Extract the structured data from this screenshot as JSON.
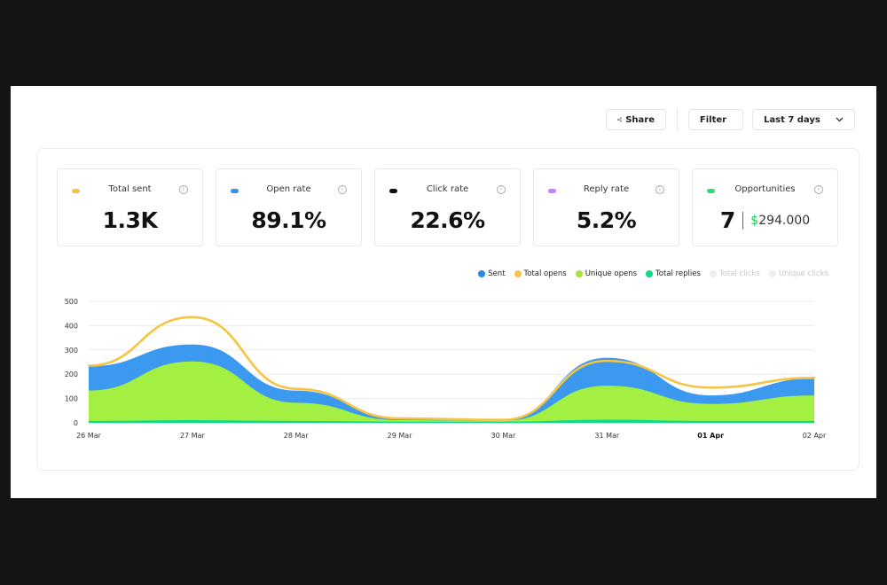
{
  "toolbar": {
    "share_label": "Share",
    "filter_label": "Filter",
    "date_label": "Last 7 days"
  },
  "kpis": [
    {
      "label": "Total sent",
      "value": "1.3K",
      "color": "#f6c445"
    },
    {
      "label": "Open rate",
      "value": "89.1%",
      "color": "#3b8fe8"
    },
    {
      "label": "Click rate",
      "value": "22.6%",
      "color": "#111111"
    },
    {
      "label": "Reply rate",
      "value": "5.2%",
      "color": "#c084fc"
    },
    {
      "label": "Opportunities",
      "value": "7",
      "currency_symbol": "$",
      "amount": "294.000",
      "color": "#22e07a"
    }
  ],
  "info_glyph": "i",
  "legend": [
    {
      "label": "Sent",
      "color": "#2a8ae8",
      "active": true
    },
    {
      "label": "Total opens",
      "color": "#f6c445",
      "active": true
    },
    {
      "label": "Unique opens",
      "color": "#a3e635",
      "active": true
    },
    {
      "label": "Total replies",
      "color": "#10d98a",
      "active": true
    },
    {
      "label": "Total clicks",
      "color": "#eeeeee",
      "active": false
    },
    {
      "label": "Unique clicks",
      "color": "#eeeeee",
      "active": false
    }
  ],
  "chart_data": {
    "type": "area",
    "title": "",
    "xlabel": "",
    "ylabel": "",
    "categories": [
      "26 Mar",
      "27 Mar",
      "28 Mar",
      "29 Mar",
      "30 Mar",
      "31 Mar",
      "01 Apr",
      "02 Apr"
    ],
    "highlight_category": "01 Apr",
    "yticks": [
      0,
      100,
      200,
      300,
      400,
      500
    ],
    "ylim": [
      0,
      500
    ],
    "grid": true,
    "series": [
      {
        "name": "Sent",
        "color": "#3b9af0",
        "kind": "area",
        "values": [
          230,
          320,
          130,
          15,
          10,
          265,
          110,
          180
        ]
      },
      {
        "name": "Unique opens",
        "color": "#a3f043",
        "kind": "area",
        "values": [
          130,
          250,
          80,
          8,
          5,
          150,
          75,
          110
        ]
      },
      {
        "name": "Total replies",
        "color": "#10d98a",
        "kind": "area",
        "values": [
          5,
          8,
          5,
          2,
          2,
          10,
          5,
          5
        ]
      },
      {
        "name": "Total opens",
        "color": "#f6c445",
        "kind": "line",
        "values": [
          235,
          435,
          140,
          18,
          12,
          255,
          145,
          185
        ]
      }
    ]
  }
}
